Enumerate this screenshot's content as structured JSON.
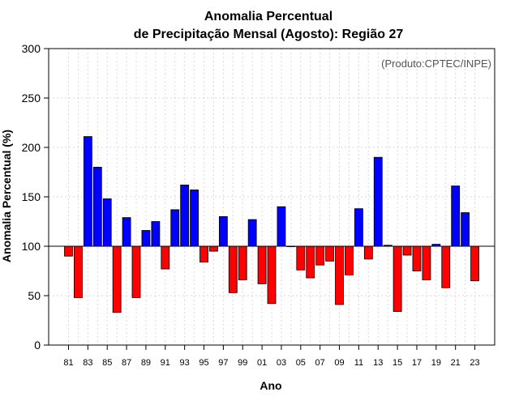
{
  "chart_data": {
    "type": "bar",
    "title_line1": "Anomalia Percentual",
    "title_line2": "de Precipitação Mensal (Agosto): Região 27",
    "credit": "(Produto:CPTEC/INPE)",
    "xlabel": "Ano",
    "ylabel": "Anomalia Percentual (%)",
    "ylim": [
      0,
      300
    ],
    "yticks": [
      0,
      50,
      100,
      150,
      200,
      250,
      300
    ],
    "baseline": 100,
    "colors": {
      "above": "#0000ff",
      "below": "#ff0000"
    },
    "categories": [
      "81",
      "82",
      "83",
      "84",
      "85",
      "86",
      "87",
      "88",
      "89",
      "90",
      "91",
      "92",
      "93",
      "94",
      "95",
      "96",
      "97",
      "98",
      "99",
      "00",
      "01",
      "02",
      "03",
      "04",
      "05",
      "06",
      "07",
      "08",
      "09",
      "10",
      "11",
      "12",
      "13",
      "14",
      "15",
      "16",
      "17",
      "18",
      "19",
      "20",
      "21",
      "22",
      "23"
    ],
    "xtick_labels": [
      "81",
      "83",
      "85",
      "87",
      "89",
      "91",
      "93",
      "95",
      "97",
      "99",
      "01",
      "03",
      "05",
      "07",
      "09",
      "11",
      "13",
      "15",
      "17",
      "19",
      "21",
      "23"
    ],
    "values": [
      90,
      48,
      211,
      180,
      148,
      33,
      129,
      48,
      116,
      125,
      77,
      137,
      162,
      157,
      84,
      95,
      130,
      53,
      66,
      127,
      62,
      42,
      140,
      100,
      76,
      68,
      81,
      85,
      41,
      71,
      138,
      87,
      190,
      101,
      34,
      91,
      75,
      66,
      102,
      58,
      161,
      134,
      65
    ]
  }
}
